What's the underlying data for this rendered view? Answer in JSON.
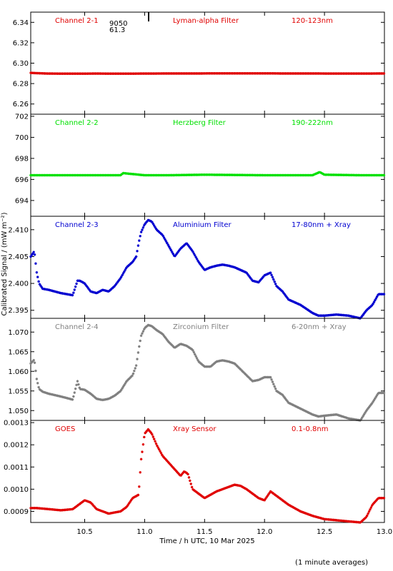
{
  "xlabel": "Time / h UTC, 10 Mar 2025",
  "ylabel": "Calibrated Signal / (mW m⁻²)",
  "footnote": "(1 minute averages)",
  "marker_annotation": {
    "line1": "9050",
    "line2": "61.3"
  },
  "x_axis": {
    "range": [
      10.05,
      13.0
    ],
    "ticks": [
      10.5,
      11.0,
      11.5,
      12.0,
      12.5,
      13.0
    ],
    "tick_labels": [
      "10.5",
      "11.0",
      "11.5",
      "12.0",
      "12.5",
      "13.0"
    ]
  },
  "chart_data": [
    {
      "type": "scatter",
      "channel": "Channel 2-1",
      "filter": "Lyman-alpha Filter",
      "band": "120-123nm",
      "color": "#e00000",
      "ylim": [
        6.25,
        6.35
      ],
      "yticks": [
        6.26,
        6.28,
        6.3,
        6.32,
        6.34
      ],
      "ytick_labels": [
        "6.26",
        "6.28",
        "6.30",
        "6.32",
        "6.34"
      ],
      "x": [
        10.05,
        10.1,
        10.2,
        10.4,
        10.6,
        10.8,
        11.0,
        11.2,
        11.4,
        11.6,
        11.8,
        12.0,
        12.2,
        12.4,
        12.6,
        12.8,
        13.0
      ],
      "y": [
        6.2905,
        6.2902,
        6.2898,
        6.2897,
        6.2898,
        6.2897,
        6.2898,
        6.2899,
        6.2899,
        6.29,
        6.29,
        6.29,
        6.2899,
        6.2899,
        6.2898,
        6.2898,
        6.2899
      ]
    },
    {
      "type": "scatter",
      "channel": "Channel 2-2",
      "filter": "Herzberg Filter",
      "band": "190-222nm",
      "color": "#00e000",
      "ylim": [
        692.5,
        702.2
      ],
      "yticks": [
        694,
        696,
        698,
        700,
        702
      ],
      "ytick_labels": [
        "694",
        "696",
        "698",
        "700",
        "702"
      ],
      "x": [
        10.05,
        10.3,
        10.6,
        10.8,
        10.82,
        11.0,
        11.2,
        11.5,
        12.0,
        12.4,
        12.46,
        12.5,
        12.8,
        13.0
      ],
      "y": [
        696.4,
        696.4,
        696.4,
        696.4,
        696.6,
        696.4,
        696.4,
        696.45,
        696.4,
        696.4,
        696.7,
        696.45,
        696.4,
        696.4
      ]
    },
    {
      "type": "scatter",
      "channel": "Channel 2-3",
      "filter": "Aluminium Filter",
      "band": "17-80nm + Xray",
      "color": "#0000d0",
      "ylim": [
        2.3935,
        2.4125
      ],
      "yticks": [
        2.395,
        2.4,
        2.405,
        2.41
      ],
      "ytick_labels": [
        "2.395",
        "2.400",
        "2.405",
        "2.410"
      ],
      "x": [
        10.05,
        10.08,
        10.1,
        10.12,
        10.15,
        10.2,
        10.3,
        10.4,
        10.44,
        10.46,
        10.5,
        10.55,
        10.6,
        10.65,
        10.7,
        10.75,
        10.8,
        10.85,
        10.9,
        10.93,
        10.95,
        10.97,
        11.0,
        11.03,
        11.06,
        11.1,
        11.15,
        11.2,
        11.25,
        11.3,
        11.35,
        11.4,
        11.45,
        11.5,
        11.55,
        11.6,
        11.65,
        11.7,
        11.75,
        11.8,
        11.85,
        11.9,
        11.95,
        12.0,
        12.05,
        12.1,
        12.15,
        12.2,
        12.3,
        12.4,
        12.45,
        12.5,
        12.6,
        12.7,
        12.8,
        12.85,
        12.9,
        12.95,
        13.0
      ],
      "y": [
        2.405,
        2.406,
        2.402,
        2.4,
        2.399,
        2.3988,
        2.3982,
        2.3978,
        2.4005,
        2.4005,
        2.4,
        2.3985,
        2.3982,
        2.3988,
        2.3985,
        2.3995,
        2.401,
        2.403,
        2.404,
        2.405,
        2.4075,
        2.4095,
        2.411,
        2.4118,
        2.4115,
        2.41,
        2.409,
        2.407,
        2.405,
        2.4065,
        2.4075,
        2.406,
        2.404,
        2.4025,
        2.403,
        2.4033,
        2.4035,
        2.4033,
        2.403,
        2.4025,
        2.402,
        2.4005,
        2.4002,
        2.4015,
        2.402,
        2.3995,
        2.3985,
        2.397,
        2.396,
        2.3945,
        2.394,
        2.394,
        2.3942,
        2.394,
        2.3935,
        2.395,
        2.396,
        2.398,
        2.398
      ]
    },
    {
      "type": "scatter",
      "channel": "Channel 2-4",
      "filter": "Zirconium Filter",
      "band": "6-20nm + Xray",
      "color": "#808080",
      "ylim": [
        1.0475,
        1.0735
      ],
      "yticks": [
        1.05,
        1.055,
        1.06,
        1.065,
        1.07
      ],
      "ytick_labels": [
        "1.050",
        "1.055",
        "1.060",
        "1.065",
        "1.070"
      ],
      "x": [
        10.05,
        10.08,
        10.1,
        10.12,
        10.15,
        10.2,
        10.3,
        10.4,
        10.44,
        10.46,
        10.5,
        10.55,
        10.6,
        10.65,
        10.7,
        10.75,
        10.8,
        10.85,
        10.9,
        10.93,
        10.95,
        10.97,
        11.0,
        11.03,
        11.06,
        11.1,
        11.15,
        11.2,
        11.25,
        11.3,
        11.35,
        11.4,
        11.45,
        11.5,
        11.55,
        11.6,
        11.65,
        11.7,
        11.75,
        11.8,
        11.85,
        11.9,
        11.95,
        12.0,
        12.05,
        12.1,
        12.15,
        12.2,
        12.3,
        12.4,
        12.45,
        12.5,
        12.6,
        12.7,
        12.8,
        12.85,
        12.9,
        12.95,
        13.0
      ],
      "y": [
        1.062,
        1.063,
        1.058,
        1.0555,
        1.0548,
        1.0543,
        1.0536,
        1.0528,
        1.0575,
        1.0555,
        1.0553,
        1.0543,
        1.053,
        1.0527,
        1.053,
        1.0538,
        1.055,
        1.0575,
        1.059,
        1.0615,
        1.0655,
        1.069,
        1.071,
        1.0718,
        1.0715,
        1.0705,
        1.0695,
        1.0675,
        1.066,
        1.067,
        1.0665,
        1.0655,
        1.0625,
        1.0612,
        1.0612,
        1.0625,
        1.0628,
        1.0625,
        1.062,
        1.0605,
        1.059,
        1.0575,
        1.0578,
        1.0585,
        1.0585,
        1.055,
        1.054,
        1.052,
        1.0505,
        1.049,
        1.0485,
        1.0487,
        1.049,
        1.048,
        1.0475,
        1.05,
        1.052,
        1.0545,
        1.0545
      ]
    },
    {
      "type": "scatter",
      "channel": "GOES",
      "filter": "Xray Sensor",
      "band": "0.1-0.8nm",
      "color": "#e00000",
      "ylim": [
        0.00085,
        0.00131
      ],
      "yticks": [
        0.0009,
        0.001,
        0.0011,
        0.0012,
        0.0013
      ],
      "ytick_labels": [
        "0.0009",
        "0.0010",
        "0.0011",
        "0.0012",
        "0.0013"
      ],
      "x": [
        10.05,
        10.1,
        10.2,
        10.3,
        10.4,
        10.45,
        10.5,
        10.55,
        10.6,
        10.7,
        10.8,
        10.85,
        10.9,
        10.95,
        10.97,
        11.0,
        11.03,
        11.06,
        11.1,
        11.15,
        11.2,
        11.25,
        11.3,
        11.33,
        11.36,
        11.4,
        11.5,
        11.6,
        11.7,
        11.75,
        11.8,
        11.85,
        11.9,
        11.95,
        12.0,
        12.05,
        12.1,
        12.2,
        12.3,
        12.4,
        12.5,
        12.6,
        12.7,
        12.8,
        12.85,
        12.9,
        12.95,
        13.0
      ],
      "y": [
        0.000915,
        0.000915,
        0.00091,
        0.000905,
        0.00091,
        0.00093,
        0.00095,
        0.00094,
        0.00091,
        0.00089,
        0.0009,
        0.00092,
        0.00096,
        0.000975,
        0.00113,
        0.00125,
        0.00127,
        0.00125,
        0.0012,
        0.00115,
        0.00112,
        0.00109,
        0.00106,
        0.00108,
        0.00107,
        0.001,
        0.00096,
        0.00099,
        0.00101,
        0.00102,
        0.001015,
        0.001,
        0.00098,
        0.00096,
        0.00095,
        0.00099,
        0.00097,
        0.00093,
        0.0009,
        0.00088,
        0.000865,
        0.00086,
        0.000855,
        0.00085,
        0.000875,
        0.00093,
        0.00096,
        0.00096
      ]
    }
  ]
}
